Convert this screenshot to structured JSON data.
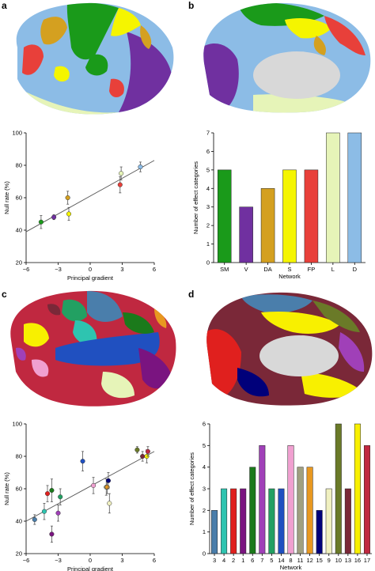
{
  "panels": {
    "a": "a",
    "b": "b",
    "c": "c",
    "d": "d"
  },
  "colors": {
    "sm": "#1a9a1a",
    "v": "#7030a0",
    "da": "#d4a020",
    "s": "#f5f500",
    "fp": "#e8403a",
    "l": "#e6f4b8",
    "d": "#8cbce6",
    "n3": "#4a7eab",
    "n4": "#2ec4b0",
    "n2": "#e0201e",
    "n1": "#7a1480",
    "n6": "#1b7a1b",
    "n7": "#a040b8",
    "n5": "#22a062",
    "n14": "#2050c0",
    "n8": "#f0a0d0",
    "n11": "#a0a080",
    "n12": "#e89820",
    "n15": "#00007a",
    "n9": "#f0f0c0",
    "n10": "#6a7a28",
    "n13": "#7a2838",
    "n16": "#f8f000",
    "n17": "#c02840"
  },
  "chart_data": [
    {
      "id": "a-scatter",
      "type": "scatter",
      "xlabel": "Principal gradient",
      "ylabel": "Null rate (%)",
      "xlim": [
        -6,
        6
      ],
      "ylim": [
        20,
        100
      ],
      "xticks": [
        -6,
        -3,
        0,
        3,
        6
      ],
      "yticks": [
        20,
        40,
        60,
        80,
        100
      ],
      "fit": {
        "x": [
          -6,
          6
        ],
        "y": [
          39,
          83
        ]
      },
      "points": [
        {
          "x": -4.6,
          "y": 45,
          "err": 4,
          "color": "sm"
        },
        {
          "x": -3.4,
          "y": 48,
          "err": 1.5,
          "color": "v"
        },
        {
          "x": -2.1,
          "y": 60,
          "err": 4,
          "color": "da"
        },
        {
          "x": -2.0,
          "y": 50,
          "err": 4,
          "color": "s"
        },
        {
          "x": 2.8,
          "y": 68,
          "err": 5,
          "color": "fp"
        },
        {
          "x": 2.9,
          "y": 75,
          "err": 4,
          "color": "l"
        },
        {
          "x": 4.7,
          "y": 79,
          "err": 3,
          "color": "d"
        }
      ]
    },
    {
      "id": "b-bar",
      "type": "bar",
      "xlabel": "Network",
      "ylabel": "Number of effect categories",
      "ylim": [
        0,
        7
      ],
      "yticks": [
        0,
        1,
        2,
        3,
        4,
        5,
        6,
        7
      ],
      "categories": [
        "SM",
        "V",
        "DA",
        "S",
        "FP",
        "L",
        "D"
      ],
      "values": [
        5,
        3,
        4,
        5,
        5,
        7,
        7
      ],
      "colors": [
        "sm",
        "v",
        "da",
        "s",
        "fp",
        "l",
        "d"
      ]
    },
    {
      "id": "c-scatter",
      "type": "scatter",
      "xlabel": "Principal gradient",
      "ylabel": "Null rate (%)",
      "xlim": [
        -6,
        6
      ],
      "ylim": [
        20,
        100
      ],
      "xticks": [
        -6,
        -3,
        0,
        3,
        6
      ],
      "yticks": [
        20,
        40,
        60,
        80,
        100
      ],
      "fit": {
        "x": [
          -6,
          6
        ],
        "y": [
          40,
          83
        ]
      },
      "points": [
        {
          "x": -5.2,
          "y": 41,
          "err": 3,
          "color": "n3"
        },
        {
          "x": -4.3,
          "y": 46,
          "err": 5,
          "color": "n4"
        },
        {
          "x": -4.0,
          "y": 57,
          "err": 5,
          "color": "n2"
        },
        {
          "x": -3.6,
          "y": 59,
          "err": 7,
          "color": "n6"
        },
        {
          "x": -3.6,
          "y": 32,
          "err": 5,
          "color": "n1"
        },
        {
          "x": -3.0,
          "y": 45,
          "err": 5,
          "color": "n7"
        },
        {
          "x": -2.8,
          "y": 55,
          "err": 5,
          "color": "n5"
        },
        {
          "x": -0.7,
          "y": 77,
          "err": 6,
          "color": "n14"
        },
        {
          "x": 0.3,
          "y": 62,
          "err": 5,
          "color": "n8"
        },
        {
          "x": 1.5,
          "y": 61,
          "err": 5,
          "color": "n11"
        },
        {
          "x": 1.6,
          "y": 61,
          "err": 4,
          "color": "n12"
        },
        {
          "x": 1.7,
          "y": 65,
          "err": 5,
          "color": "n15"
        },
        {
          "x": 1.8,
          "y": 51,
          "err": 6,
          "color": "n9"
        },
        {
          "x": 4.4,
          "y": 84,
          "err": 2,
          "color": "n10"
        },
        {
          "x": 4.9,
          "y": 80,
          "err": 3,
          "color": "n13"
        },
        {
          "x": 5.3,
          "y": 80,
          "err": 4,
          "color": "n16"
        },
        {
          "x": 5.4,
          "y": 83,
          "err": 3,
          "color": "n17"
        }
      ]
    },
    {
      "id": "d-bar",
      "type": "bar",
      "xlabel": "Network",
      "ylabel": "Number of effect categories",
      "ylim": [
        0,
        6
      ],
      "yticks": [
        0,
        1,
        2,
        3,
        4,
        5,
        6
      ],
      "categories": [
        "3",
        "4",
        "2",
        "1",
        "6",
        "7",
        "5",
        "14",
        "8",
        "11",
        "12",
        "15",
        "9",
        "10",
        "13",
        "16",
        "17"
      ],
      "values": [
        2,
        3,
        3,
        3,
        4,
        5,
        3,
        3,
        5,
        4,
        4,
        2,
        3,
        6,
        3,
        6,
        5
      ],
      "colors": [
        "n3",
        "n4",
        "n2",
        "n1",
        "n6",
        "n7",
        "n5",
        "n14",
        "n8",
        "n11",
        "n12",
        "n15",
        "n9",
        "n10",
        "n13",
        "n16",
        "n17"
      ]
    }
  ]
}
